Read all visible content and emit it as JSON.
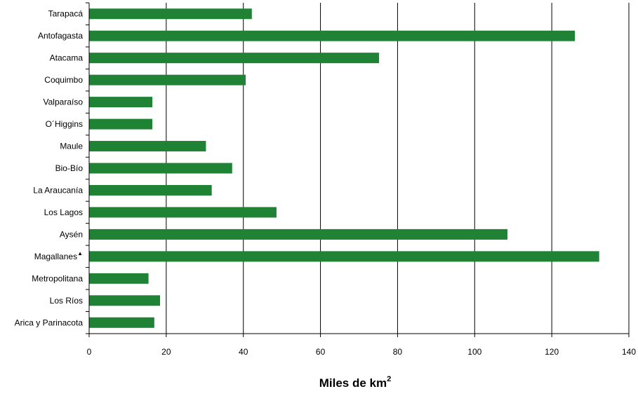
{
  "chart_data": {
    "type": "bar",
    "orientation": "horizontal",
    "categories": [
      "Tarapacá",
      "Antofagasta",
      "Atacama",
      "Coquimbo",
      "Valparaíso",
      "O´Higgins",
      "Maule",
      "Bio-Bío",
      "La Araucanía",
      "Los Lagos",
      "Aysén",
      "Magallanes",
      "Metropolitana",
      "Los Ríos",
      "Arica y Parinacota"
    ],
    "values": [
      42.2,
      126.0,
      75.2,
      40.6,
      16.4,
      16.4,
      30.3,
      37.1,
      31.8,
      48.6,
      108.5,
      132.3,
      15.4,
      18.4,
      16.9
    ],
    "marked_category": "Magallanes",
    "marker_symbol": "▲",
    "xlabel": "Miles de km",
    "xlabel_superscript": "2",
    "xlim": [
      0,
      140
    ],
    "xticks": [
      0,
      20,
      40,
      60,
      80,
      100,
      120,
      140
    ],
    "grid": "vertical",
    "bar_color": "#1f8235",
    "grid_color": "#000000"
  }
}
